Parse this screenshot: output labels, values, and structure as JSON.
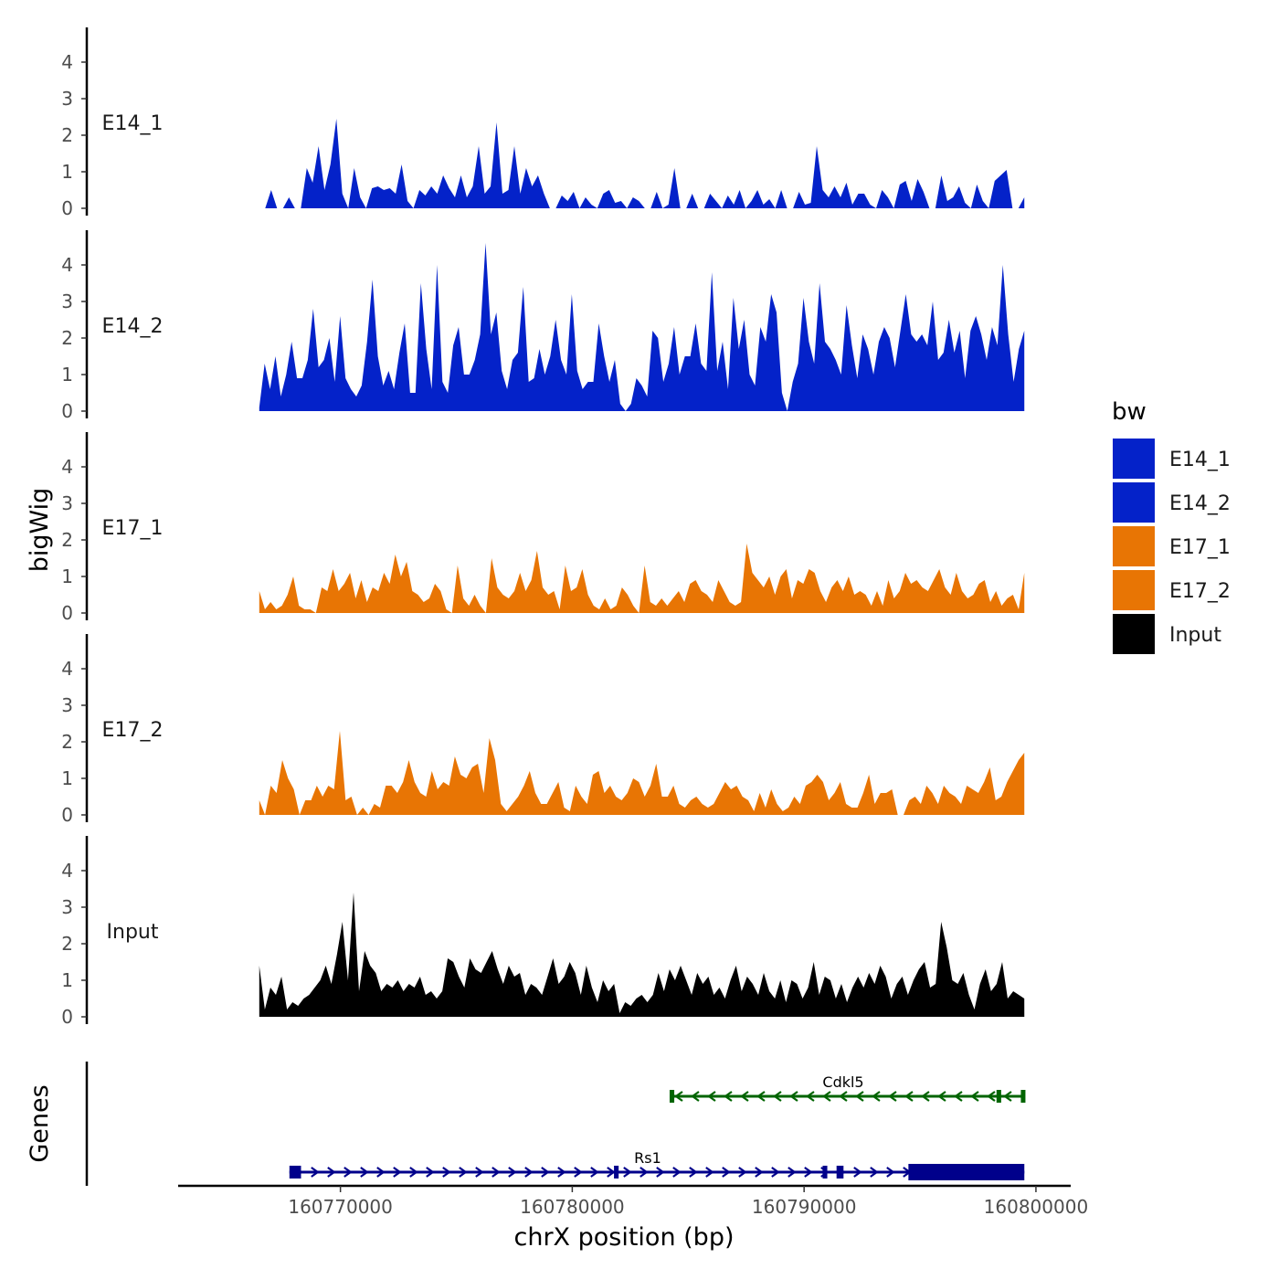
{
  "chart_data": {
    "type": "area",
    "ylabel": "bigWig",
    "xlabel": "chrX position (bp)",
    "genes_label": "Genes",
    "xlim": [
      160763000,
      160801500
    ],
    "data_xrange": [
      160766500,
      160799500
    ],
    "ylim": [
      0,
      4.9
    ],
    "y_ticks": [
      0,
      1,
      2,
      3,
      4
    ],
    "y_tick_labels": [
      "0",
      "1",
      "2",
      "3",
      "4"
    ],
    "x_ticks": [
      160770000,
      160780000,
      160790000,
      160800000
    ],
    "x_tick_labels": [
      "160770000",
      "160780000",
      "160790000",
      "160800000"
    ],
    "legend": {
      "title": "bw",
      "items": [
        {
          "label": "E14_1",
          "color": "#0422c9"
        },
        {
          "label": "E14_2",
          "color": "#0422c9"
        },
        {
          "label": "E17_1",
          "color": "#e87504"
        },
        {
          "label": "E17_2",
          "color": "#e87504"
        },
        {
          "label": "Input",
          "color": "#000000"
        }
      ]
    },
    "series": [
      {
        "name": "E14_1",
        "color": "#0422c9",
        "values": [
          0,
          0,
          0.5,
          0,
          0,
          0.3,
          0,
          0,
          1.1,
          0.7,
          1.7,
          0.5,
          1.2,
          2.45,
          0.4,
          0,
          1.1,
          0.3,
          0,
          0.55,
          0.6,
          0.5,
          0.55,
          0.4,
          1.2,
          0.2,
          0,
          0.5,
          0.35,
          0.6,
          0.4,
          0.9,
          0.55,
          0.3,
          0.9,
          0.3,
          0.6,
          1.7,
          0.4,
          0.6,
          2.35,
          0.4,
          0.5,
          1.7,
          0.4,
          1.1,
          0.6,
          0.9,
          0.4,
          0,
          0,
          0.35,
          0.2,
          0.45,
          0,
          0.3,
          0.1,
          0,
          0.4,
          0.5,
          0.15,
          0.2,
          0,
          0.3,
          0.2,
          0,
          0,
          0.45,
          0,
          0.1,
          1.1,
          0,
          0,
          0.4,
          0,
          0,
          0.4,
          0.2,
          0,
          0.35,
          0.1,
          0.5,
          0,
          0.2,
          0.5,
          0.1,
          0.25,
          0,
          0.5,
          0,
          0,
          0.45,
          0.1,
          0.15,
          1.7,
          0.5,
          0.3,
          0.6,
          0.3,
          0.7,
          0.1,
          0.4,
          0.4,
          0.1,
          0,
          0.5,
          0.3,
          0,
          0.65,
          0.75,
          0.2,
          0.8,
          0.45,
          0,
          0,
          0.9,
          0.2,
          0.3,
          0.6,
          0.15,
          0,
          0.65,
          0.2,
          0,
          0.75,
          0.9,
          1.05,
          0,
          0,
          0.3
        ]
      },
      {
        "name": "E14_2",
        "color": "#0422c9",
        "values": [
          0.1,
          1.3,
          0.6,
          1.5,
          0.4,
          1,
          1.9,
          0.9,
          0.9,
          1.4,
          2.8,
          1.2,
          1.4,
          2,
          0.8,
          2.6,
          0.9,
          0.6,
          0.4,
          0.7,
          1.9,
          3.6,
          1.5,
          0.7,
          1.1,
          0.6,
          1.6,
          2.4,
          0.5,
          0.5,
          3.5,
          1.7,
          0.6,
          4,
          0.8,
          0.5,
          1.8,
          2.3,
          1,
          1,
          1.4,
          2.1,
          4.6,
          2.1,
          2.7,
          1.1,
          0.6,
          1.4,
          1.6,
          3.4,
          0.8,
          0.9,
          1.7,
          1,
          1.5,
          2.5,
          1.4,
          1,
          3.2,
          1.1,
          0.6,
          0.8,
          0.8,
          2.4,
          1.5,
          0.8,
          1.4,
          0.2,
          0,
          0.2,
          0.9,
          0.7,
          0.4,
          2.2,
          2,
          0.8,
          1.3,
          2.3,
          1,
          1.5,
          1.5,
          2.4,
          1.3,
          1.1,
          3.8,
          1.1,
          1.9,
          0.6,
          3.1,
          1.7,
          2.5,
          1,
          0.7,
          2.3,
          1.9,
          3.2,
          2.7,
          0.5,
          0,
          0.8,
          1.3,
          3.1,
          1.9,
          1.3,
          3.5,
          1.9,
          1.7,
          1.4,
          1,
          2.9,
          1.8,
          0.9,
          2.1,
          1.7,
          1,
          1.9,
          2.3,
          2,
          1.2,
          2.2,
          3.2,
          2.1,
          1.9,
          2.1,
          1.8,
          3,
          1.4,
          1.6,
          2.5,
          1.6,
          2.2,
          0.9,
          2.2,
          2.6,
          2.1,
          1.4,
          2.3,
          1.8,
          4,
          2.1,
          0.8,
          1.7,
          2.2
        ]
      },
      {
        "name": "E17_1",
        "color": "#e87504",
        "values": [
          0.6,
          0.1,
          0.3,
          0.1,
          0.2,
          0.5,
          1,
          0.2,
          0.1,
          0.1,
          0,
          0.7,
          0.6,
          1.2,
          0.6,
          0.8,
          1.1,
          0.4,
          0.9,
          0.3,
          0.7,
          0.6,
          1.1,
          0.8,
          1.6,
          1,
          1.4,
          0.6,
          0.5,
          0.3,
          0.4,
          0.8,
          0.6,
          0.1,
          0,
          1.3,
          0.4,
          0.2,
          0.5,
          0.2,
          0,
          1.5,
          0.7,
          0.5,
          0.4,
          0.6,
          1.1,
          0.6,
          0.9,
          1.7,
          0.7,
          0.5,
          0.6,
          0.1,
          1.3,
          0.6,
          0.7,
          1.2,
          0.5,
          0.2,
          0.1,
          0.4,
          0.1,
          0.2,
          0.7,
          0.5,
          0.2,
          0,
          1.3,
          0.3,
          0.2,
          0.4,
          0.2,
          0.4,
          0.6,
          0.3,
          0.8,
          0.9,
          0.6,
          0.5,
          0.3,
          0.9,
          0.6,
          0.3,
          0.2,
          0.3,
          1.9,
          1.1,
          0.9,
          0.7,
          1,
          0.5,
          1,
          1.2,
          0.4,
          0.9,
          0.8,
          1.2,
          1.1,
          0.6,
          0.3,
          0.7,
          0.9,
          0.6,
          1,
          0.5,
          0.6,
          0.5,
          0.2,
          0.6,
          0.2,
          0.9,
          0.4,
          0.6,
          1.1,
          0.8,
          0.9,
          0.7,
          0.6,
          0.9,
          1.2,
          0.7,
          0.5,
          1.1,
          0.6,
          0.4,
          0.5,
          0.8,
          0.9,
          0.3,
          0.6,
          0.2,
          0.4,
          0.5,
          0.1,
          1.1
        ]
      },
      {
        "name": "E17_2",
        "color": "#e87504",
        "values": [
          0.4,
          0,
          0.8,
          0.6,
          1.5,
          1,
          0.7,
          0,
          0.4,
          0.4,
          0.8,
          0.5,
          0.8,
          0.7,
          2.3,
          0.4,
          0.5,
          0,
          0.2,
          0,
          0.3,
          0.2,
          0.8,
          0.8,
          0.6,
          0.9,
          1.5,
          0.9,
          0.6,
          0.5,
          1.2,
          0.7,
          0.9,
          0.8,
          1.6,
          1.1,
          1,
          1.3,
          1.4,
          0.6,
          2.1,
          1.5,
          0.3,
          0.1,
          0.3,
          0.5,
          0.8,
          1.2,
          0.6,
          0.3,
          0.3,
          0.6,
          0.9,
          0.2,
          0.1,
          0.8,
          0.5,
          0.3,
          1.1,
          1.2,
          0.6,
          0.8,
          0.5,
          0.4,
          0.6,
          1,
          0.9,
          0.5,
          0.8,
          1.4,
          0.5,
          0.5,
          0.8,
          0.3,
          0.2,
          0.4,
          0.5,
          0.3,
          0.2,
          0.3,
          0.6,
          0.9,
          0.7,
          0.8,
          0.5,
          0.4,
          0.1,
          0.6,
          0.2,
          0.7,
          0.3,
          0.1,
          0.2,
          0.5,
          0.3,
          0.8,
          0.9,
          1.1,
          0.9,
          0.4,
          0.6,
          0.9,
          0.3,
          0.2,
          0.2,
          0.6,
          1.1,
          0.3,
          0.6,
          0.6,
          0.7,
          0,
          0,
          0.4,
          0.5,
          0.3,
          0.8,
          0.6,
          0.3,
          0.8,
          0.6,
          0.5,
          0.3,
          0.8,
          0.7,
          0.6,
          0.9,
          1.3,
          0.4,
          0.5,
          0.9,
          1.2,
          1.5,
          1.7
        ]
      },
      {
        "name": "Input",
        "color": "#000000",
        "values": [
          1.4,
          0.2,
          0.8,
          0.6,
          1.1,
          0.2,
          0.4,
          0.3,
          0.5,
          0.6,
          0.8,
          1,
          1.4,
          0.9,
          1.7,
          2.6,
          1,
          3.4,
          0.7,
          1.8,
          1.4,
          1.2,
          0.7,
          0.9,
          0.8,
          1,
          0.7,
          0.9,
          0.8,
          1.1,
          0.6,
          0.7,
          0.5,
          0.7,
          1.6,
          1.5,
          1.1,
          0.8,
          1.6,
          1.3,
          1.2,
          1.5,
          1.8,
          1.3,
          0.9,
          1.4,
          1.1,
          1.2,
          0.6,
          0.9,
          0.8,
          0.6,
          1.1,
          1.6,
          0.9,
          1.1,
          1.5,
          1.2,
          0.6,
          1.4,
          0.8,
          0.4,
          1,
          0.7,
          0.9,
          0.1,
          0.4,
          0.3,
          0.5,
          0.6,
          0.4,
          0.6,
          1.2,
          0.7,
          1.3,
          1,
          1.4,
          1,
          0.6,
          1.2,
          0.9,
          1.1,
          0.6,
          0.8,
          0.5,
          1,
          1.4,
          0.7,
          1.1,
          0.9,
          0.6,
          1.2,
          0.7,
          0.5,
          1,
          0.4,
          1,
          0.9,
          0.5,
          0.8,
          1.5,
          0.6,
          1.1,
          1,
          0.5,
          0.9,
          0.4,
          0.8,
          1.1,
          0.8,
          1.2,
          0.9,
          1.4,
          1.1,
          0.5,
          0.9,
          1.1,
          0.6,
          1,
          1.3,
          1.5,
          0.8,
          0.9,
          2.6,
          1.9,
          1,
          0.9,
          1.2,
          0.6,
          0.2,
          0.9,
          1.3,
          0.7,
          0.9,
          1.5,
          0.5,
          0.7,
          0.6,
          0.5
        ]
      }
    ],
    "genes": [
      {
        "name": "Cdkl5",
        "color": "#006400",
        "start": 160784200,
        "end": 160799500,
        "strand": "-",
        "exons": [
          [
            160784200,
            160784400
          ],
          [
            160798300,
            160798500
          ],
          [
            160799350,
            160799500
          ]
        ]
      },
      {
        "name": "Rs1",
        "color": "#00008b",
        "start": 160767800,
        "end": 160799500,
        "strand": "+",
        "exons": [
          [
            160767800,
            160768300
          ],
          [
            160781800,
            160782000
          ],
          [
            160790800,
            160791000
          ],
          [
            160791400,
            160791700
          ],
          [
            160794500,
            160799500
          ]
        ]
      }
    ]
  }
}
